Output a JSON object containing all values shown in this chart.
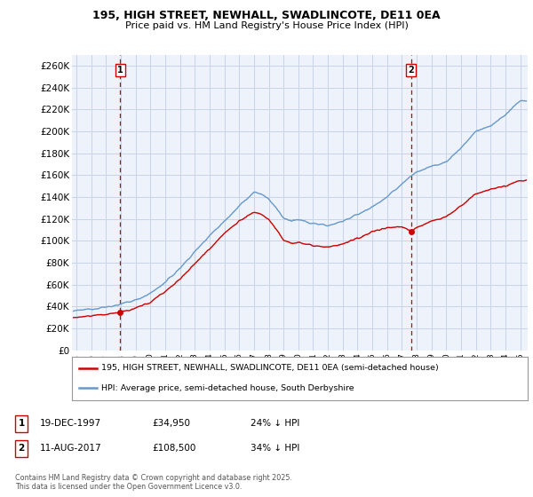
{
  "title1": "195, HIGH STREET, NEWHALL, SWADLINCOTE, DE11 0EA",
  "title2": "Price paid vs. HM Land Registry's House Price Index (HPI)",
  "ylabel_ticks": [
    "£0",
    "£20K",
    "£40K",
    "£60K",
    "£80K",
    "£100K",
    "£120K",
    "£140K",
    "£160K",
    "£180K",
    "£200K",
    "£220K",
    "£240K",
    "£260K"
  ],
  "ytick_vals": [
    0,
    20000,
    40000,
    60000,
    80000,
    100000,
    120000,
    140000,
    160000,
    180000,
    200000,
    220000,
    240000,
    260000
  ],
  "ylim": [
    0,
    270000
  ],
  "xlim_start": 1994.7,
  "xlim_end": 2025.5,
  "xtick_years": [
    1995,
    1996,
    1997,
    1998,
    1999,
    2000,
    2001,
    2002,
    2003,
    2004,
    2005,
    2006,
    2007,
    2008,
    2009,
    2010,
    2011,
    2012,
    2013,
    2014,
    2015,
    2016,
    2017,
    2018,
    2019,
    2020,
    2021,
    2022,
    2023,
    2024,
    2025
  ],
  "marker1_x": 1997.97,
  "marker1_y": 34950,
  "marker2_x": 2017.61,
  "marker2_y": 108500,
  "sale_color": "#cc0000",
  "hpi_color": "#6699cc",
  "legend_sale": "195, HIGH STREET, NEWHALL, SWADLINCOTE, DE11 0EA (semi-detached house)",
  "legend_hpi": "HPI: Average price, semi-detached house, South Derbyshire",
  "annotation1_label": "1",
  "annotation1_date": "19-DEC-1997",
  "annotation1_price": "£34,950",
  "annotation1_hpi": "24% ↓ HPI",
  "annotation2_label": "2",
  "annotation2_date": "11-AUG-2017",
  "annotation2_price": "£108,500",
  "annotation2_hpi": "34% ↓ HPI",
  "footer": "Contains HM Land Registry data © Crown copyright and database right 2025.\nThis data is licensed under the Open Government Licence v3.0.",
  "bg_color": "#ffffff",
  "grid_color": "#c8d4e8",
  "plot_bg": "#eef2fa"
}
